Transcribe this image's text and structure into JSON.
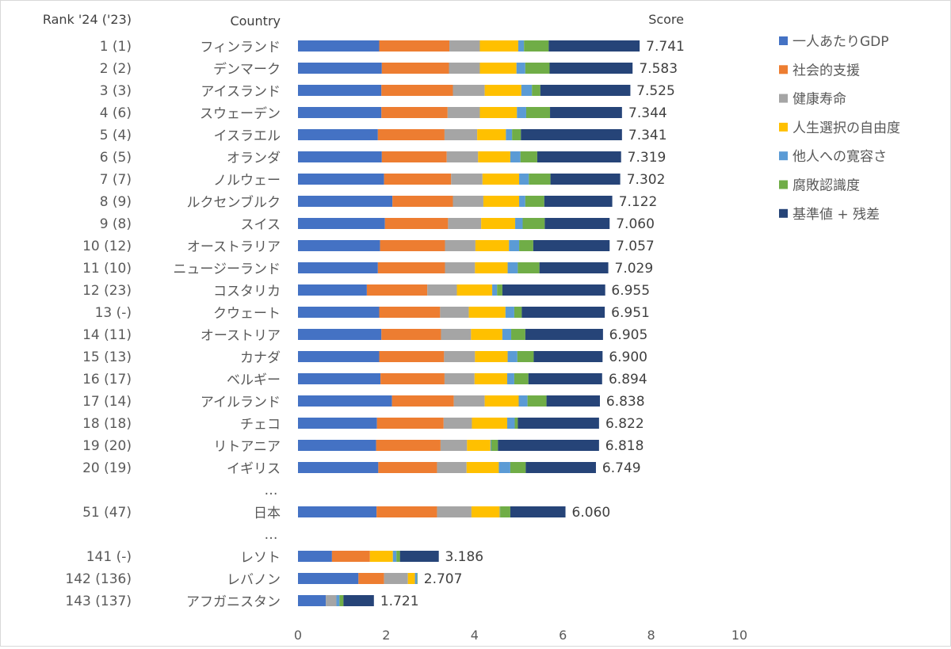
{
  "chart_data": {
    "type": "bar",
    "orientation": "horizontal",
    "stacked": true,
    "headers": {
      "rank": "Rank '24 ('23)",
      "country": "Country",
      "score": "Score"
    },
    "xlim": [
      0,
      10
    ],
    "xticks": [
      0,
      2,
      4,
      6,
      8,
      10
    ],
    "grid": false,
    "legend_position": "right",
    "series": [
      {
        "name": "一人あたりGDP",
        "color": "#4472C4"
      },
      {
        "name": "社会的支援",
        "color": "#ED7D31"
      },
      {
        "name": "健康寿命",
        "color": "#A5A5A5"
      },
      {
        "name": "人生選択の自由度",
        "color": "#FFC000"
      },
      {
        "name": "他人への寛容さ",
        "color": "#5B9BD5"
      },
      {
        "name": "腐敗認識度",
        "color": "#70AD47"
      },
      {
        "name": "基準値 + 残差",
        "color": "#264478"
      }
    ],
    "rows": [
      {
        "rank": "1 (1)",
        "country": "フィンランド",
        "score": "7.741",
        "values": [
          1.84,
          1.59,
          0.69,
          0.87,
          0.13,
          0.56,
          2.06
        ]
      },
      {
        "rank": "2 (2)",
        "country": "デンマーク",
        "score": "7.583",
        "values": [
          1.9,
          1.52,
          0.7,
          0.83,
          0.2,
          0.55,
          1.88
        ]
      },
      {
        "rank": "3 (3)",
        "country": "アイスランド",
        "score": "7.525",
        "values": [
          1.89,
          1.62,
          0.72,
          0.83,
          0.24,
          0.19,
          2.04
        ]
      },
      {
        "rank": "4 (6)",
        "country": "スウェーデン",
        "score": "7.344",
        "values": [
          1.89,
          1.5,
          0.73,
          0.84,
          0.21,
          0.54,
          1.63
        ]
      },
      {
        "rank": "5 (4)",
        "country": "イスラエル",
        "score": "7.341",
        "values": [
          1.81,
          1.51,
          0.74,
          0.65,
          0.14,
          0.2,
          2.29
        ]
      },
      {
        "rank": "6 (5)",
        "country": "オランダ",
        "score": "7.319",
        "values": [
          1.9,
          1.47,
          0.71,
          0.73,
          0.23,
          0.38,
          1.9
        ]
      },
      {
        "rank": "7 (7)",
        "country": "ノルウェー",
        "score": "7.302",
        "values": [
          1.95,
          1.52,
          0.71,
          0.83,
          0.22,
          0.49,
          1.58
        ]
      },
      {
        "rank": "8 (9)",
        "country": "ルクセンブルク",
        "score": "7.122",
        "values": [
          2.14,
          1.37,
          0.69,
          0.81,
          0.14,
          0.43,
          1.54
        ]
      },
      {
        "rank": "9 (8)",
        "country": "スイス",
        "score": "7.060",
        "values": [
          1.97,
          1.43,
          0.75,
          0.77,
          0.17,
          0.5,
          1.47
        ]
      },
      {
        "rank": "10 (12)",
        "country": "オーストラリア",
        "score": "7.057",
        "values": [
          1.86,
          1.47,
          0.69,
          0.76,
          0.23,
          0.32,
          1.73
        ]
      },
      {
        "rank": "11 (10)",
        "country": "ニュージーランド",
        "score": "7.029",
        "values": [
          1.81,
          1.52,
          0.68,
          0.74,
          0.23,
          0.49,
          1.56
        ]
      },
      {
        "rank": "12 (23)",
        "country": "コスタリカ",
        "score": "6.955",
        "values": [
          1.56,
          1.37,
          0.67,
          0.8,
          0.11,
          0.12,
          2.33
        ]
      },
      {
        "rank": "13 (-)",
        "country": "クウェート",
        "score": "6.951",
        "values": [
          1.84,
          1.38,
          0.65,
          0.83,
          0.2,
          0.17,
          1.88
        ]
      },
      {
        "rank": "14 (11)",
        "country": "オーストリア",
        "score": "6.905",
        "values": [
          1.89,
          1.35,
          0.68,
          0.71,
          0.2,
          0.32,
          1.76
        ]
      },
      {
        "rank": "15 (13)",
        "country": "カナダ",
        "score": "6.900",
        "values": [
          1.84,
          1.47,
          0.7,
          0.74,
          0.22,
          0.37,
          1.56
        ]
      },
      {
        "rank": "16 (17)",
        "country": "ベルギー",
        "score": "6.894",
        "values": [
          1.87,
          1.45,
          0.68,
          0.74,
          0.16,
          0.32,
          1.67
        ]
      },
      {
        "rank": "17 (14)",
        "country": "アイルランド",
        "score": "6.838",
        "values": [
          2.13,
          1.4,
          0.7,
          0.77,
          0.2,
          0.43,
          1.21
        ]
      },
      {
        "rank": "18 (18)",
        "country": "チェコ",
        "score": "6.822",
        "values": [
          1.79,
          1.51,
          0.64,
          0.8,
          0.17,
          0.07,
          1.84
        ]
      },
      {
        "rank": "19 (20)",
        "country": "リトアニア",
        "score": "6.818",
        "values": [
          1.77,
          1.46,
          0.6,
          0.53,
          0.02,
          0.15,
          2.29
        ]
      },
      {
        "rank": "20 (19)",
        "country": "イギリス",
        "score": "6.749",
        "values": [
          1.82,
          1.33,
          0.67,
          0.73,
          0.26,
          0.35,
          1.59
        ]
      },
      {
        "ellipsis": "…"
      },
      {
        "rank": "51 (47)",
        "country": "日本",
        "score": "6.060",
        "values": [
          1.78,
          1.37,
          0.78,
          0.64,
          0.01,
          0.23,
          1.25
        ]
      },
      {
        "ellipsis": "…"
      },
      {
        "rank": "141 (-)",
        "country": "レソト",
        "score": "3.186",
        "values": [
          0.77,
          0.86,
          0.0,
          0.52,
          0.08,
          0.08,
          0.88
        ]
      },
      {
        "rank": "142 (136)",
        "country": "レバノン",
        "score": "2.707",
        "values": [
          1.37,
          0.58,
          0.54,
          0.16,
          0.05,
          0.01,
          0.0
        ]
      },
      {
        "rank": "143 (137)",
        "country": "アフガニスタン",
        "score": "1.721",
        "values": [
          0.63,
          0.0,
          0.24,
          0.0,
          0.07,
          0.09,
          0.69
        ]
      }
    ]
  }
}
